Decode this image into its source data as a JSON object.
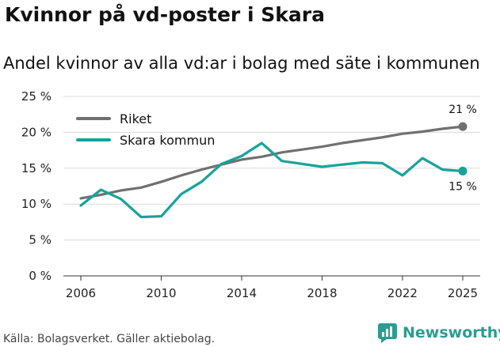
{
  "title": "Kvinnor på vd-poster i Skara",
  "subtitle": "Andel kvinnor av alla vd:ar i bolag med säte i kommunen",
  "source": "Källa: Bolagsverket. Gäller aktiebolag.",
  "brand": "Newsworthy",
  "colors": {
    "riket": "#707070",
    "skara": "#17a398",
    "grid": "#d9d9d9",
    "brand": "#2a9d8f"
  },
  "chart_data": {
    "type": "line",
    "x": [
      2006,
      2007,
      2008,
      2009,
      2010,
      2011,
      2012,
      2013,
      2014,
      2015,
      2016,
      2017,
      2018,
      2019,
      2020,
      2021,
      2022,
      2023,
      2024,
      2025
    ],
    "series": [
      {
        "name": "Riket",
        "values": [
          10.8,
          11.3,
          11.9,
          12.3,
          13.1,
          14.0,
          14.8,
          15.5,
          16.2,
          16.6,
          17.2,
          17.6,
          18.0,
          18.5,
          18.9,
          19.3,
          19.8,
          20.1,
          20.5,
          20.8
        ],
        "end_label": "21 %"
      },
      {
        "name": "Skara kommun",
        "values": [
          9.8,
          12.0,
          10.7,
          8.2,
          8.3,
          11.4,
          13.1,
          15.6,
          16.7,
          18.5,
          16.0,
          15.6,
          15.2,
          15.5,
          15.8,
          15.7,
          14.0,
          16.4,
          14.8,
          14.6
        ],
        "end_label": "15 %"
      }
    ],
    "xticks": [
      2006,
      2010,
      2014,
      2018,
      2022,
      2025
    ],
    "yticks": [
      0,
      5,
      10,
      15,
      20,
      25
    ],
    "ytick_labels": [
      "0 %",
      "5 %",
      "10 %",
      "15 %",
      "20 %",
      "25 %"
    ],
    "ylim": [
      0,
      25
    ],
    "xlim": [
      2006,
      2025
    ],
    "legend": "top-left",
    "xlabel": "",
    "ylabel": ""
  }
}
